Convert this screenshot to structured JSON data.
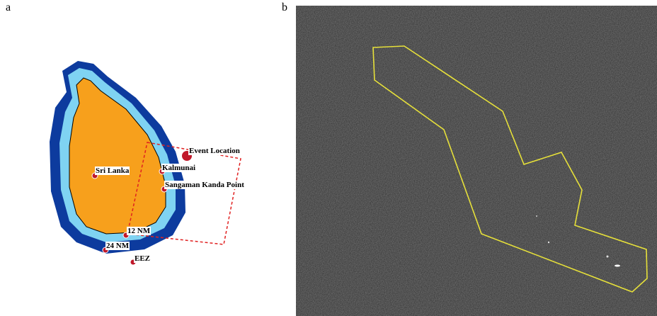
{
  "panels": {
    "a": {
      "label": "a"
    },
    "b": {
      "label": "b"
    }
  },
  "map": {
    "labels": [
      "Event Location",
      "Sri Lanka",
      "Kalmunai",
      "Sangaman Kanda Point",
      "12 NM",
      "24 NM",
      "EEZ"
    ]
  }
}
